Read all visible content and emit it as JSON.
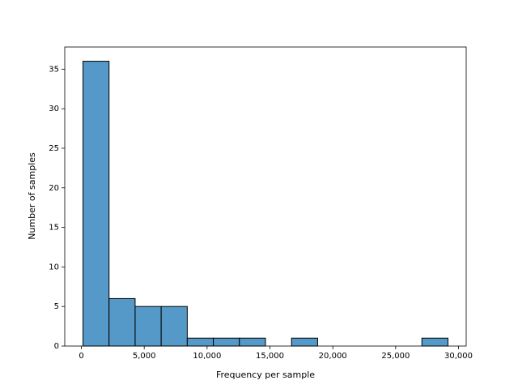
{
  "chart_data": {
    "type": "histogram",
    "xlabel": "Frequency per sample",
    "ylabel": "Number of samples",
    "bins": [
      130,
      2204,
      4277,
      6351,
      8424,
      10498,
      12571,
      14645,
      16719,
      18792,
      20866,
      22939,
      25013,
      27086,
      29160
    ],
    "counts": [
      36,
      6,
      5,
      5,
      1,
      1,
      1,
      0,
      1,
      0,
      0,
      0,
      0,
      1
    ],
    "color": "#5499c7",
    "edgecolor": "#000000",
    "xlim": [
      -1320,
      30610
    ],
    "ylim": [
      0,
      37.8
    ],
    "xticks": [
      0,
      {
        "value": 5000,
        "label": "5,000"
      },
      {
        "value": 10000,
        "label": "10,000"
      },
      {
        "value": 15000,
        "label": "15,000"
      },
      {
        "value": 20000,
        "label": "20,000"
      },
      {
        "value": 25000,
        "label": "25,000"
      },
      {
        "value": 30000,
        "label": "30,000"
      }
    ],
    "yticks": [
      0,
      5,
      10,
      15,
      20,
      25,
      30,
      35
    ]
  }
}
